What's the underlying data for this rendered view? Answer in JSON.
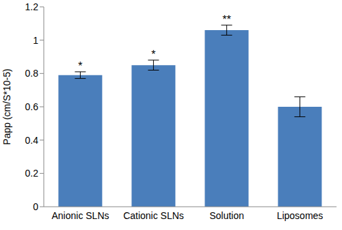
{
  "chart_data": {
    "type": "bar",
    "y_label": "Papp (cm/S*10-5)",
    "categories": [
      "Anionic SLNs",
      "Cationic SLNs",
      "Solution",
      "Liposomes"
    ],
    "values": [
      0.79,
      0.85,
      1.06,
      0.6
    ],
    "errors": [
      0.02,
      0.03,
      0.03,
      0.06
    ],
    "annotations": [
      {
        "category": "Anionic SLNs",
        "text": "*"
      },
      {
        "category": "Cationic SLNs",
        "text": "*"
      },
      {
        "category": "Solution",
        "text": "**"
      }
    ],
    "color": "#4a7ebb",
    "ylim": [
      0,
      1.2
    ],
    "yticks": [
      0,
      0.2,
      0.4,
      0.6,
      0.8,
      1,
      1.2
    ],
    "grid": false
  }
}
